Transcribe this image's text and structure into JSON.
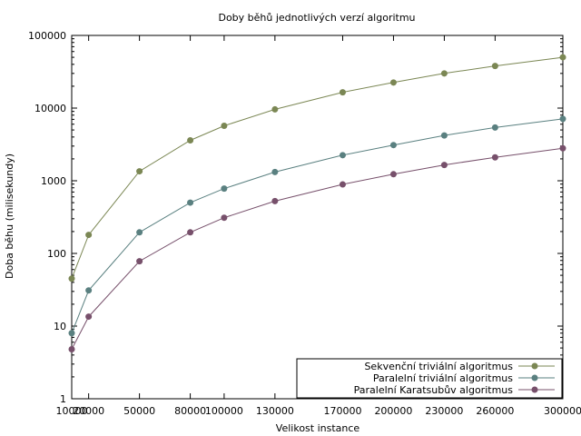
{
  "chart_data": {
    "type": "line",
    "title": "Doby běhů jednotlivých verzí algoritmu",
    "xlabel": "Velikost instance",
    "ylabel": "Doba běhu (milisekundy)",
    "yscale": "log",
    "xlim": [
      10000,
      300000
    ],
    "ylim": [
      1,
      100000
    ],
    "grid": false,
    "legend_position": "bottom-right",
    "x_ticks": [
      10000,
      20000,
      50000,
      80000,
      100000,
      130000,
      170000,
      200000,
      230000,
      260000,
      300000
    ],
    "x_tick_labels": [
      "10000",
      "20000",
      "50000",
      "80000",
      "100000",
      "130000",
      "170000",
      "200000",
      "230000",
      "260000",
      "300000"
    ],
    "y_ticks": [
      1,
      10,
      100,
      1000,
      10000,
      100000
    ],
    "y_tick_labels": [
      "1",
      "10",
      "100",
      "1000",
      "10000",
      "100000"
    ],
    "x": [
      10000,
      20000,
      50000,
      80000,
      100000,
      130000,
      170000,
      200000,
      230000,
      260000,
      300000
    ],
    "series": [
      {
        "name": "Sekvenční triviální algoritmus",
        "color": "#7b8754",
        "values": [
          45,
          180,
          1350,
          3600,
          5700,
          9600,
          16500,
          22500,
          30000,
          38000,
          50000
        ]
      },
      {
        "name": "Paralelní triviální algoritmus",
        "color": "#5a8080",
        "values": [
          8,
          31,
          195,
          500,
          780,
          1320,
          2250,
          3100,
          4200,
          5400,
          7100
        ]
      },
      {
        "name": "Paralelní Karatsubův algoritmus",
        "color": "#77506b",
        "values": [
          4.8,
          13.5,
          78,
          195,
          310,
          525,
          890,
          1230,
          1650,
          2100,
          2800
        ]
      }
    ]
  }
}
